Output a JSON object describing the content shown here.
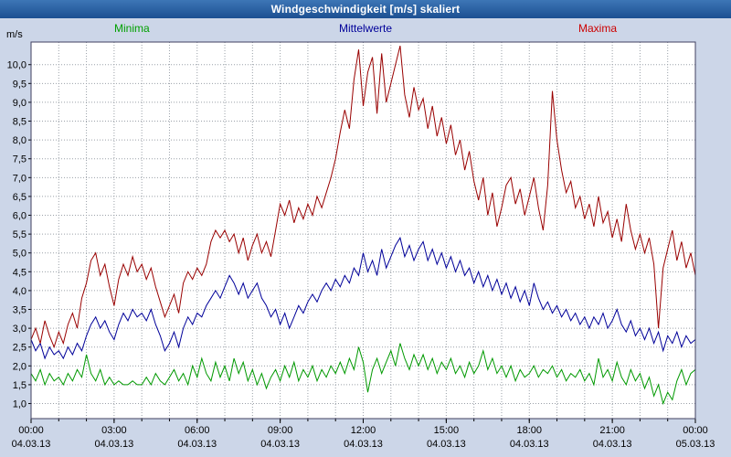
{
  "window": {
    "title": "Windgeschwindigkeit [m/s] skaliert"
  },
  "legend": {
    "items": [
      {
        "label": "Minima",
        "color": "#00a000"
      },
      {
        "label": "Mittelwerte",
        "color": "#000099"
      },
      {
        "label": "Maxima",
        "color": "#cc0000"
      }
    ]
  },
  "colors": {
    "page_background": "#ccd6e8",
    "title_bar": "#2a64a8",
    "plot_background": "#ffffff",
    "plot_border": "#404060",
    "grid": "#9aa0a8"
  },
  "chart_data": {
    "type": "line",
    "title": "Windgeschwindigkeit [m/s] skaliert",
    "ylabel": "m/s",
    "xlabel": "",
    "ylim": [
      0.6,
      10.6
    ],
    "y_ticks": {
      "start": 1.0,
      "end": 10.0,
      "step": 0.5,
      "decimal_separator": "comma"
    },
    "x_hours": 24,
    "x_step_minutes": 10,
    "x_tick_hours": [
      0,
      3,
      6,
      9,
      12,
      15,
      18,
      21,
      24
    ],
    "x_tick_labels": [
      "00:00",
      "03:00",
      "06:00",
      "09:00",
      "12:00",
      "15:00",
      "18:00",
      "21:00",
      "00:00"
    ],
    "x_tick_dates": [
      "04.03.13",
      "04.03.13",
      "04.03.13",
      "04.03.13",
      "04.03.13",
      "04.03.13",
      "04.03.13",
      "04.03.13",
      "05.03.13"
    ],
    "grid": {
      "style": "dotted",
      "horizontal_step": 0.5,
      "vertical_step_hours": 1
    },
    "legend_position": "top",
    "series": [
      {
        "name": "Minima",
        "color": "#009900",
        "values": [
          1.8,
          1.6,
          1.9,
          1.5,
          1.8,
          1.6,
          1.7,
          1.5,
          1.8,
          1.6,
          1.9,
          1.7,
          2.3,
          1.8,
          1.6,
          1.9,
          1.5,
          1.7,
          1.5,
          1.6,
          1.5,
          1.5,
          1.6,
          1.5,
          1.5,
          1.7,
          1.5,
          1.8,
          1.6,
          1.5,
          1.7,
          1.9,
          1.6,
          1.8,
          1.5,
          2.0,
          1.7,
          2.2,
          1.8,
          1.6,
          2.1,
          1.7,
          2.0,
          1.6,
          2.2,
          1.8,
          2.1,
          1.6,
          1.9,
          1.5,
          1.8,
          1.4,
          1.7,
          1.9,
          1.6,
          2.0,
          1.7,
          2.1,
          1.6,
          1.9,
          1.7,
          2.0,
          1.6,
          1.9,
          1.7,
          2.0,
          1.8,
          2.1,
          1.8,
          2.2,
          1.9,
          2.5,
          2.1,
          1.3,
          1.9,
          2.2,
          1.8,
          2.1,
          2.4,
          2.0,
          2.6,
          2.2,
          1.9,
          2.3,
          2.0,
          2.3,
          1.9,
          2.2,
          1.8,
          2.1,
          1.9,
          2.2,
          1.8,
          2.0,
          1.7,
          2.1,
          1.8,
          2.0,
          2.4,
          1.9,
          2.2,
          1.8,
          2.0,
          1.7,
          2.0,
          1.6,
          1.9,
          1.7,
          1.8,
          2.0,
          1.7,
          1.9,
          1.8,
          2.0,
          1.7,
          1.9,
          1.6,
          1.8,
          1.7,
          1.9,
          1.6,
          1.8,
          1.5,
          2.2,
          1.7,
          1.9,
          1.6,
          2.1,
          1.7,
          1.5,
          1.9,
          1.6,
          1.8,
          1.4,
          1.7,
          1.2,
          1.5,
          1.0,
          1.3,
          1.1,
          1.6,
          1.9,
          1.5,
          1.8,
          1.9
        ]
      },
      {
        "name": "Mittelwerte",
        "color": "#000099",
        "values": [
          2.7,
          2.4,
          2.6,
          2.2,
          2.5,
          2.3,
          2.4,
          2.2,
          2.5,
          2.3,
          2.6,
          2.4,
          2.8,
          3.1,
          3.3,
          3.0,
          3.2,
          2.9,
          2.7,
          3.1,
          3.4,
          3.2,
          3.5,
          3.3,
          3.4,
          3.2,
          3.5,
          3.1,
          2.8,
          2.4,
          2.6,
          2.9,
          2.5,
          3.0,
          3.3,
          3.1,
          3.4,
          3.3,
          3.6,
          3.8,
          4.0,
          3.8,
          4.1,
          4.4,
          4.2,
          3.9,
          4.2,
          3.8,
          4.0,
          4.2,
          3.8,
          3.6,
          3.3,
          3.5,
          3.1,
          3.4,
          3.0,
          3.3,
          3.6,
          3.4,
          3.7,
          3.9,
          3.7,
          4.0,
          4.2,
          4.0,
          4.3,
          4.1,
          4.4,
          4.2,
          4.6,
          4.4,
          5.0,
          4.5,
          4.8,
          4.4,
          5.1,
          4.6,
          4.9,
          5.2,
          5.4,
          4.9,
          5.2,
          4.8,
          5.1,
          5.3,
          4.8,
          5.1,
          4.7,
          5.0,
          4.6,
          4.9,
          4.5,
          4.8,
          4.4,
          4.6,
          4.2,
          4.5,
          4.1,
          4.4,
          4.0,
          4.3,
          3.9,
          4.2,
          3.8,
          4.1,
          3.7,
          4.0,
          3.6,
          4.2,
          3.8,
          3.5,
          3.7,
          3.4,
          3.6,
          3.3,
          3.5,
          3.2,
          3.4,
          3.1,
          3.3,
          3.0,
          3.3,
          3.1,
          3.4,
          3.0,
          3.2,
          3.5,
          3.1,
          2.9,
          3.2,
          2.8,
          3.0,
          2.7,
          3.0,
          2.6,
          2.9,
          2.4,
          2.8,
          2.6,
          2.9,
          2.5,
          2.8,
          2.6,
          2.7
        ]
      },
      {
        "name": "Maxima",
        "color": "#990000",
        "values": [
          2.7,
          3.0,
          2.6,
          3.2,
          2.8,
          2.5,
          2.9,
          2.6,
          3.1,
          3.4,
          3.0,
          3.8,
          4.2,
          4.8,
          5.0,
          4.4,
          4.7,
          4.1,
          3.6,
          4.3,
          4.7,
          4.4,
          4.9,
          4.5,
          4.7,
          4.3,
          4.6,
          4.1,
          3.7,
          3.3,
          3.6,
          3.9,
          3.4,
          4.2,
          4.5,
          4.3,
          4.6,
          4.4,
          4.7,
          5.3,
          5.6,
          5.4,
          5.6,
          5.3,
          5.5,
          5.0,
          5.4,
          4.8,
          5.2,
          5.5,
          5.0,
          5.3,
          4.9,
          5.6,
          6.3,
          6.0,
          6.4,
          5.8,
          6.2,
          5.9,
          6.3,
          6.0,
          6.5,
          6.2,
          6.6,
          7.0,
          7.5,
          8.2,
          8.8,
          8.3,
          9.6,
          10.4,
          8.9,
          9.8,
          10.2,
          8.7,
          10.3,
          9.0,
          9.5,
          10.0,
          10.5,
          9.2,
          8.6,
          9.4,
          8.8,
          9.1,
          8.3,
          8.9,
          8.1,
          8.6,
          7.9,
          8.4,
          7.6,
          8.0,
          7.2,
          7.7,
          6.9,
          6.4,
          7.0,
          6.0,
          6.6,
          5.7,
          6.2,
          6.8,
          7.0,
          6.3,
          6.7,
          6.0,
          6.5,
          7.0,
          6.2,
          5.6,
          6.8,
          9.3,
          8.0,
          7.2,
          6.6,
          6.9,
          6.2,
          6.5,
          5.9,
          6.3,
          5.7,
          6.5,
          5.8,
          6.1,
          5.4,
          5.9,
          5.3,
          6.3,
          5.6,
          5.1,
          5.5,
          5.0,
          5.4,
          4.7,
          3.0,
          4.6,
          5.1,
          5.6,
          4.8,
          5.3,
          4.6,
          5.0,
          4.4
        ]
      }
    ]
  }
}
